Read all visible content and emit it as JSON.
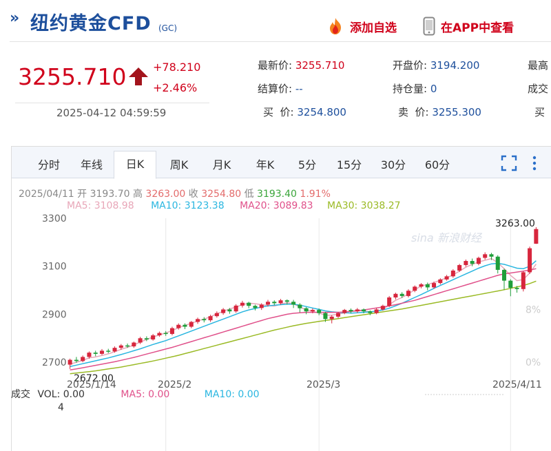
{
  "header": {
    "title": "纽约黄金CFD",
    "title_suffix": "(GC)",
    "add_favorite": "添加自选",
    "view_in_app": "在APP中查看"
  },
  "quote": {
    "price": "3255.710",
    "change": "+78.210",
    "change_pct": "+2.46%",
    "timestamp": "2025-04-12 04:59:59",
    "fields": {
      "latest_label": "最新价:",
      "latest_value": "3255.710",
      "open_label": "开盘价:",
      "open_value": "3194.200",
      "high_label": "最高",
      "settle_label": "结算价:",
      "settle_value": "--",
      "oi_label": "持仓量:",
      "oi_value": "0",
      "volume_label": "成交",
      "bid_label": "买  价:",
      "bid_value": "3254.800",
      "ask_label": "卖  价:",
      "ask_value": "3255.300",
      "bid2_label": "买"
    }
  },
  "tabs": [
    "分时",
    "年线",
    "日K",
    "周K",
    "月K",
    "年K",
    "5分",
    "15分",
    "30分",
    "60分"
  ],
  "active_tab": "日K",
  "candle_info": {
    "date": "2025/04/11",
    "open_label": "开",
    "open": "3193.70",
    "high_label": "高",
    "high": "3263.00",
    "close_label": "收",
    "close": "3254.80",
    "low_label": "低",
    "low": "3193.40",
    "pct": "1.91%"
  },
  "ma_info": {
    "ma5": "MA5: 3108.98",
    "ma10": "MA10: 3123.38",
    "ma20": "MA20: 3089.83",
    "ma30": "MA30: 3038.27"
  },
  "volume_info": {
    "label": "成交",
    "vol": "VOL: 0.00",
    "ma5": "MA5: 0.00",
    "ma10": "MA10: 0.00",
    "unit": "4"
  },
  "colors": {
    "up": "#d7263d",
    "down": "#1f9e3a",
    "ma5": "#e8a6b8",
    "ma10": "#29b6e0",
    "ma20": "#e0508a",
    "ma30": "#9aba24",
    "brand": "#1d4f9c"
  },
  "chart_data": {
    "type": "line",
    "y_ticks": [
      2700,
      2900,
      3100,
      3300
    ],
    "y_range": [
      2640,
      3300
    ],
    "x_tick_labels": [
      "2025/1/14",
      "2025/2",
      "2025/3",
      "2025/4/11"
    ],
    "pct_ticks": [
      "8%",
      "0%"
    ],
    "max_label": "3263.00",
    "min_label": "2672.00",
    "watermark": "sina 新浪财经",
    "candles": [
      [
        2690,
        2710,
        2672,
        2715
      ],
      [
        2710,
        2705,
        2698,
        2722
      ],
      [
        2705,
        2722,
        2700,
        2728
      ],
      [
        2722,
        2740,
        2715,
        2745
      ],
      [
        2740,
        2735,
        2725,
        2748
      ],
      [
        2735,
        2748,
        2730,
        2755
      ],
      [
        2748,
        2745,
        2738,
        2756
      ],
      [
        2745,
        2760,
        2740,
        2766
      ],
      [
        2760,
        2770,
        2752,
        2776
      ],
      [
        2770,
        2766,
        2760,
        2778
      ],
      [
        2766,
        2782,
        2760,
        2786
      ],
      [
        2782,
        2800,
        2776,
        2806
      ],
      [
        2800,
        2795,
        2788,
        2808
      ],
      [
        2795,
        2812,
        2790,
        2818
      ],
      [
        2812,
        2822,
        2806,
        2828
      ],
      [
        2822,
        2818,
        2810,
        2830
      ],
      [
        2818,
        2842,
        2812,
        2848
      ],
      [
        2842,
        2856,
        2836,
        2862
      ],
      [
        2856,
        2848,
        2838,
        2862
      ],
      [
        2848,
        2868,
        2842,
        2872
      ],
      [
        2868,
        2880,
        2860,
        2886
      ],
      [
        2880,
        2875,
        2866,
        2888
      ],
      [
        2875,
        2892,
        2868,
        2898
      ],
      [
        2892,
        2905,
        2886,
        2912
      ],
      [
        2905,
        2920,
        2898,
        2926
      ],
      [
        2920,
        2912,
        2902,
        2926
      ],
      [
        2912,
        2936,
        2906,
        2942
      ],
      [
        2936,
        2948,
        2928,
        2956
      ],
      [
        2948,
        2935,
        2925,
        2952
      ],
      [
        2935,
        2926,
        2916,
        2940
      ],
      [
        2926,
        2940,
        2918,
        2946
      ],
      [
        2940,
        2952,
        2932,
        2960
      ],
      [
        2952,
        2946,
        2938,
        2958
      ],
      [
        2946,
        2958,
        2940,
        2964
      ],
      [
        2958,
        2952,
        2940,
        2962
      ],
      [
        2952,
        2940,
        2926,
        2960
      ],
      [
        2940,
        2925,
        2908,
        2946
      ],
      [
        2925,
        2912,
        2900,
        2930
      ],
      [
        2912,
        2918,
        2904,
        2924
      ],
      [
        2918,
        2905,
        2896,
        2924
      ],
      [
        2905,
        2880,
        2868,
        2910
      ],
      [
        2880,
        2890,
        2862,
        2896
      ],
      [
        2890,
        2905,
        2884,
        2910
      ],
      [
        2905,
        2918,
        2900,
        2922
      ],
      [
        2918,
        2912,
        2904,
        2924
      ],
      [
        2912,
        2920,
        2906,
        2926
      ],
      [
        2920,
        2912,
        2904,
        2924
      ],
      [
        2912,
        2905,
        2896,
        2916
      ],
      [
        2905,
        2920,
        2900,
        2926
      ],
      [
        2920,
        2935,
        2915,
        2940
      ],
      [
        2935,
        2970,
        2930,
        2976
      ],
      [
        2970,
        2985,
        2962,
        2990
      ],
      [
        2985,
        2976,
        2968,
        2992
      ],
      [
        2976,
        2998,
        2970,
        3004
      ],
      [
        2998,
        3015,
        2992,
        3020
      ],
      [
        3015,
        3025,
        3008,
        3030
      ],
      [
        3025,
        3012,
        3000,
        3032
      ],
      [
        3012,
        3030,
        3006,
        3036
      ],
      [
        3030,
        3045,
        3024,
        3050
      ],
      [
        3045,
        3058,
        3040,
        3064
      ],
      [
        3058,
        3082,
        3052,
        3088
      ],
      [
        3082,
        3105,
        3076,
        3110
      ],
      [
        3105,
        3122,
        3098,
        3128
      ],
      [
        3122,
        3110,
        3100,
        3132
      ],
      [
        3110,
        3135,
        3104,
        3140
      ],
      [
        3135,
        3150,
        3128,
        3158
      ],
      [
        3150,
        3140,
        3126,
        3156
      ],
      [
        3140,
        3085,
        3070,
        3146
      ],
      [
        3085,
        3040,
        3002,
        3090
      ],
      [
        3040,
        3010,
        2975,
        3046
      ],
      [
        3010,
        3005,
        2990,
        3018
      ],
      [
        3005,
        3075,
        2995,
        3080
      ],
      [
        3075,
        3175,
        3068,
        3182
      ],
      [
        3194,
        3255,
        3193,
        3263
      ]
    ],
    "ma_series": {
      "MA5": [
        2692,
        2700,
        2708,
        2718,
        2722,
        2728,
        2735,
        2744,
        2754,
        2762,
        2772,
        2784,
        2795,
        2805,
        2814,
        2822,
        2832,
        2844,
        2854,
        2862,
        2872,
        2880,
        2890,
        2902,
        2912,
        2922,
        2930,
        2940,
        2946,
        2944,
        2940,
        2936,
        2934,
        2942,
        2948,
        2944,
        2930,
        2918,
        2912,
        2905,
        2896,
        2896,
        2900,
        2906,
        2912,
        2916,
        2914,
        2910,
        2912,
        2920,
        2940,
        2958,
        2970,
        2985,
        3002,
        3018,
        3024,
        3032,
        3042,
        3052,
        3064,
        3080,
        3096,
        3108,
        3118,
        3125,
        3132,
        3115,
        3090,
        3062,
        3040,
        3045,
        3072,
        3109
      ],
      "MA10": [
        2682,
        2688,
        2694,
        2700,
        2706,
        2712,
        2718,
        2725,
        2732,
        2740,
        2748,
        2756,
        2765,
        2774,
        2782,
        2790,
        2800,
        2810,
        2820,
        2830,
        2840,
        2850,
        2860,
        2870,
        2880,
        2890,
        2900,
        2910,
        2918,
        2924,
        2930,
        2935,
        2938,
        2940,
        2942,
        2942,
        2938,
        2932,
        2926,
        2920,
        2914,
        2910,
        2908,
        2906,
        2905,
        2906,
        2908,
        2910,
        2913,
        2918,
        2925,
        2935,
        2946,
        2958,
        2970,
        2982,
        2995,
        3008,
        3020,
        3032,
        3044,
        3056,
        3068,
        3080,
        3092,
        3102,
        3110,
        3112,
        3108,
        3100,
        3092,
        3090,
        3100,
        3123
      ],
      "MA20": [
        2668,
        2672,
        2677,
        2682,
        2687,
        2692,
        2697,
        2702,
        2708,
        2714,
        2720,
        2727,
        2734,
        2741,
        2748,
        2755,
        2762,
        2770,
        2778,
        2786,
        2794,
        2802,
        2810,
        2818,
        2826,
        2834,
        2842,
        2850,
        2858,
        2866,
        2874,
        2882,
        2888,
        2894,
        2900,
        2904,
        2906,
        2908,
        2908,
        2908,
        2908,
        2908,
        2908,
        2910,
        2912,
        2914,
        2918,
        2922,
        2926,
        2930,
        2935,
        2940,
        2946,
        2952,
        2958,
        2966,
        2974,
        2982,
        2990,
        2998,
        3006,
        3014,
        3022,
        3030,
        3038,
        3046,
        3054,
        3062,
        3068,
        3072,
        3076,
        3080,
        3084,
        3090
      ],
      "MA30": [
        2652,
        2655,
        2658,
        2661,
        2664,
        2668,
        2672,
        2676,
        2680,
        2685,
        2690,
        2695,
        2700,
        2705,
        2711,
        2717,
        2723,
        2729,
        2736,
        2743,
        2750,
        2757,
        2764,
        2771,
        2778,
        2785,
        2792,
        2799,
        2806,
        2813,
        2820,
        2827,
        2834,
        2840,
        2846,
        2852,
        2857,
        2862,
        2866,
        2870,
        2874,
        2878,
        2882,
        2886,
        2890,
        2894,
        2898,
        2902,
        2906,
        2910,
        2914,
        2918,
        2922,
        2927,
        2932,
        2937,
        2942,
        2947,
        2952,
        2957,
        2962,
        2967,
        2972,
        2977,
        2982,
        2987,
        2992,
        2997,
        3002,
        3008,
        3014,
        3020,
        3028,
        3038
      ]
    }
  }
}
